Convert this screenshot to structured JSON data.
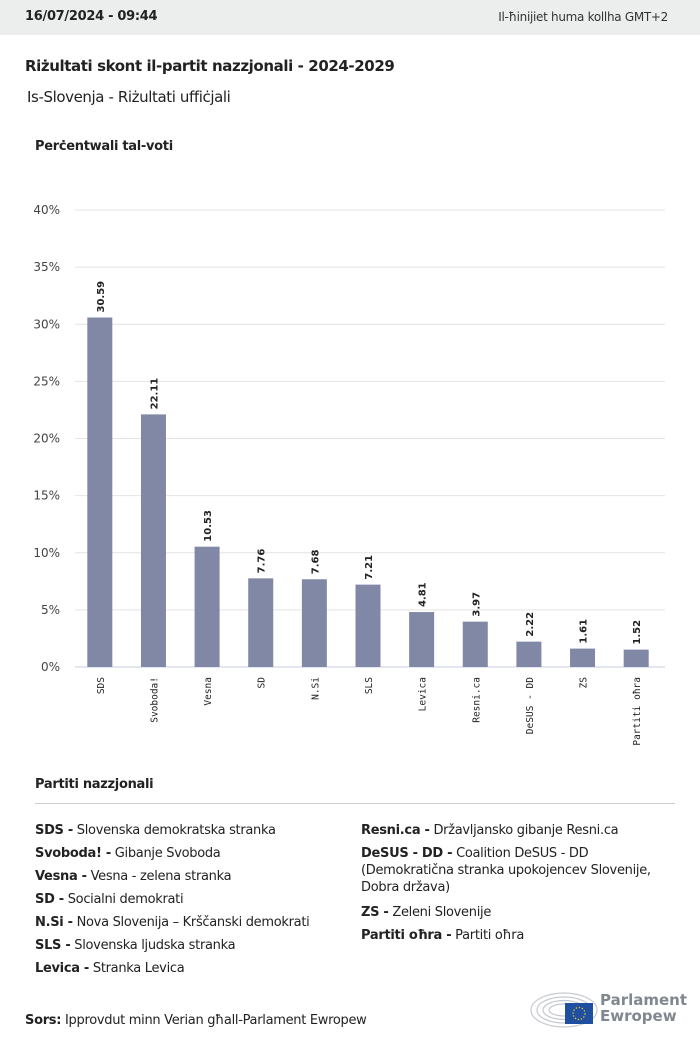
{
  "header": {
    "date": "16/07/2024 - 09:44",
    "timezone_note": "Il-ħinijiet huma kollha GMT+2"
  },
  "title": "Riżultati skont il-partit nazzjonali - 2024-2029",
  "subtitle": "Is-Slovenja - Riżultati uffiċjali",
  "chart_data": {
    "type": "bar",
    "ylabel": "Perċentwali tal-voti",
    "categories": [
      "SDS",
      "Svoboda!",
      "Vesna",
      "SD",
      "N.Si",
      "SLS",
      "Levica",
      "Resni.ca",
      "DeSUS - DD",
      "ZS",
      "Partiti oħra"
    ],
    "values": [
      30.59,
      22.11,
      10.53,
      7.76,
      7.68,
      7.21,
      4.81,
      3.97,
      2.22,
      1.61,
      1.52
    ],
    "value_labels": [
      "30.59",
      "22.11",
      "10.53",
      "7.76",
      "7.68",
      "7.21",
      "4.81",
      "3.97",
      "2.22",
      "1.61",
      "1.52"
    ],
    "ylim": [
      0,
      40
    ],
    "yticks": [
      "0%",
      "5%",
      "10%",
      "15%",
      "20%",
      "25%",
      "30%",
      "35%",
      "40%"
    ],
    "grid": true,
    "bar_color": "#8088a6"
  },
  "legend": {
    "title": "Partiti nazzjonali",
    "items": [
      {
        "abbr": "SDS -",
        "name": "Slovenska demokratska stranka"
      },
      {
        "abbr": "Svoboda! -",
        "name": "Gibanje Svoboda"
      },
      {
        "abbr": "Vesna -",
        "name": "Vesna - zelena stranka"
      },
      {
        "abbr": "SD -",
        "name": "Socialni demokrati"
      },
      {
        "abbr": "N.Si -",
        "name": "Nova Slovenija – Krščanski demokrati"
      },
      {
        "abbr": "SLS -",
        "name": "Slovenska ljudska stranka"
      },
      {
        "abbr": "Levica -",
        "name": "Stranka Levica"
      },
      {
        "abbr": "Resni.ca -",
        "name": "Državljansko gibanje Resni.ca"
      },
      {
        "abbr": "DeSUS - DD -",
        "name": "Coalition DeSUS - DD (Demokratična stranka upokojencev Slovenije, Dobra država)"
      },
      {
        "abbr": "ZS -",
        "name": "Zeleni Slovenije"
      },
      {
        "abbr": "Partiti oħra -",
        "name": "Partiti oħra"
      }
    ]
  },
  "source": {
    "label": "Sors:",
    "text": "Ipprovdut minn Verian għall-Parlament Ewropew"
  },
  "logo": {
    "line1": "Parlament",
    "line2": "Ewropew"
  }
}
